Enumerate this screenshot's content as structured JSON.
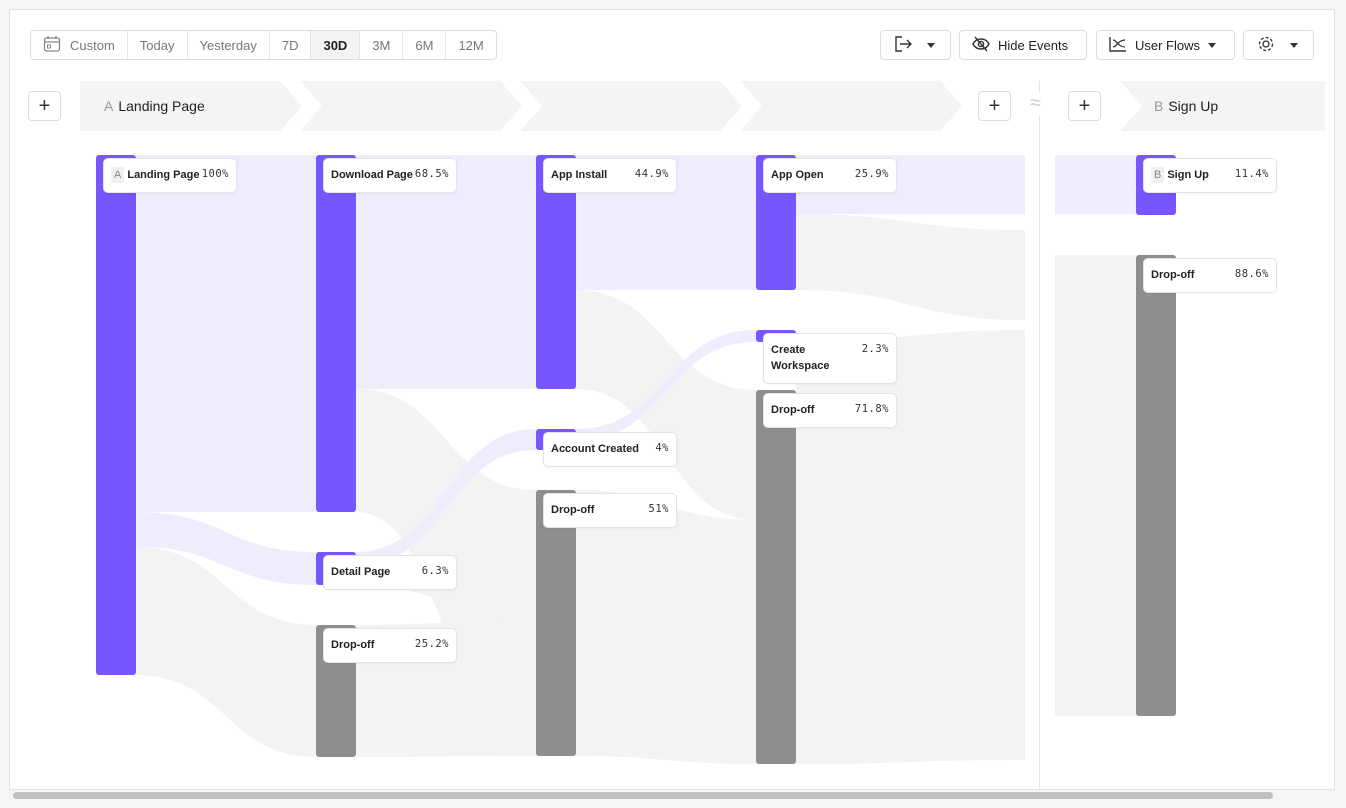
{
  "toolbar": {
    "date_range": [
      "Custom",
      "Today",
      "Yesterday",
      "7D",
      "30D",
      "3M",
      "6M",
      "12M"
    ],
    "date_range_selected": "30D",
    "export_icon": "export-icon",
    "hide_events_label": "Hide Events",
    "user_flows_label": "User Flows",
    "settings_icon": "gear-icon"
  },
  "steps": [
    {
      "letter": "A",
      "label": "Landing Page"
    },
    {
      "letter": "B",
      "label": "Sign Up"
    }
  ],
  "gap_symbol": "≈",
  "add_symbol": "+",
  "nodes": [
    {
      "letter": "A",
      "name": "Landing Page",
      "pct": "100%",
      "type": "event"
    },
    {
      "name": "Download Page",
      "pct": "68.5%",
      "type": "event"
    },
    {
      "name": "Detail Page",
      "pct": "6.3%",
      "type": "event"
    },
    {
      "name": "Drop-off",
      "pct": "25.2%",
      "type": "dropoff"
    },
    {
      "name": "App Install",
      "pct": "44.9%",
      "type": "event"
    },
    {
      "name": "Account Created",
      "pct": "4%",
      "type": "event"
    },
    {
      "name": "Drop-off",
      "pct": "51%",
      "type": "dropoff"
    },
    {
      "name": "App Open",
      "pct": "25.9%",
      "type": "event"
    },
    {
      "name": "Create Workspace",
      "pct": "2.3%",
      "type": "event"
    },
    {
      "name": "Drop-off",
      "pct": "71.8%",
      "type": "dropoff"
    },
    {
      "letter": "B",
      "name": "Sign Up",
      "pct": "11.4%",
      "type": "event"
    },
    {
      "name": "Drop-off",
      "pct": "88.6%",
      "type": "dropoff"
    }
  ],
  "colors": {
    "event": "#7856ff",
    "dropoff": "#8e8e90",
    "flow": "#efecfd",
    "dropflow": "#f3f3f3"
  }
}
